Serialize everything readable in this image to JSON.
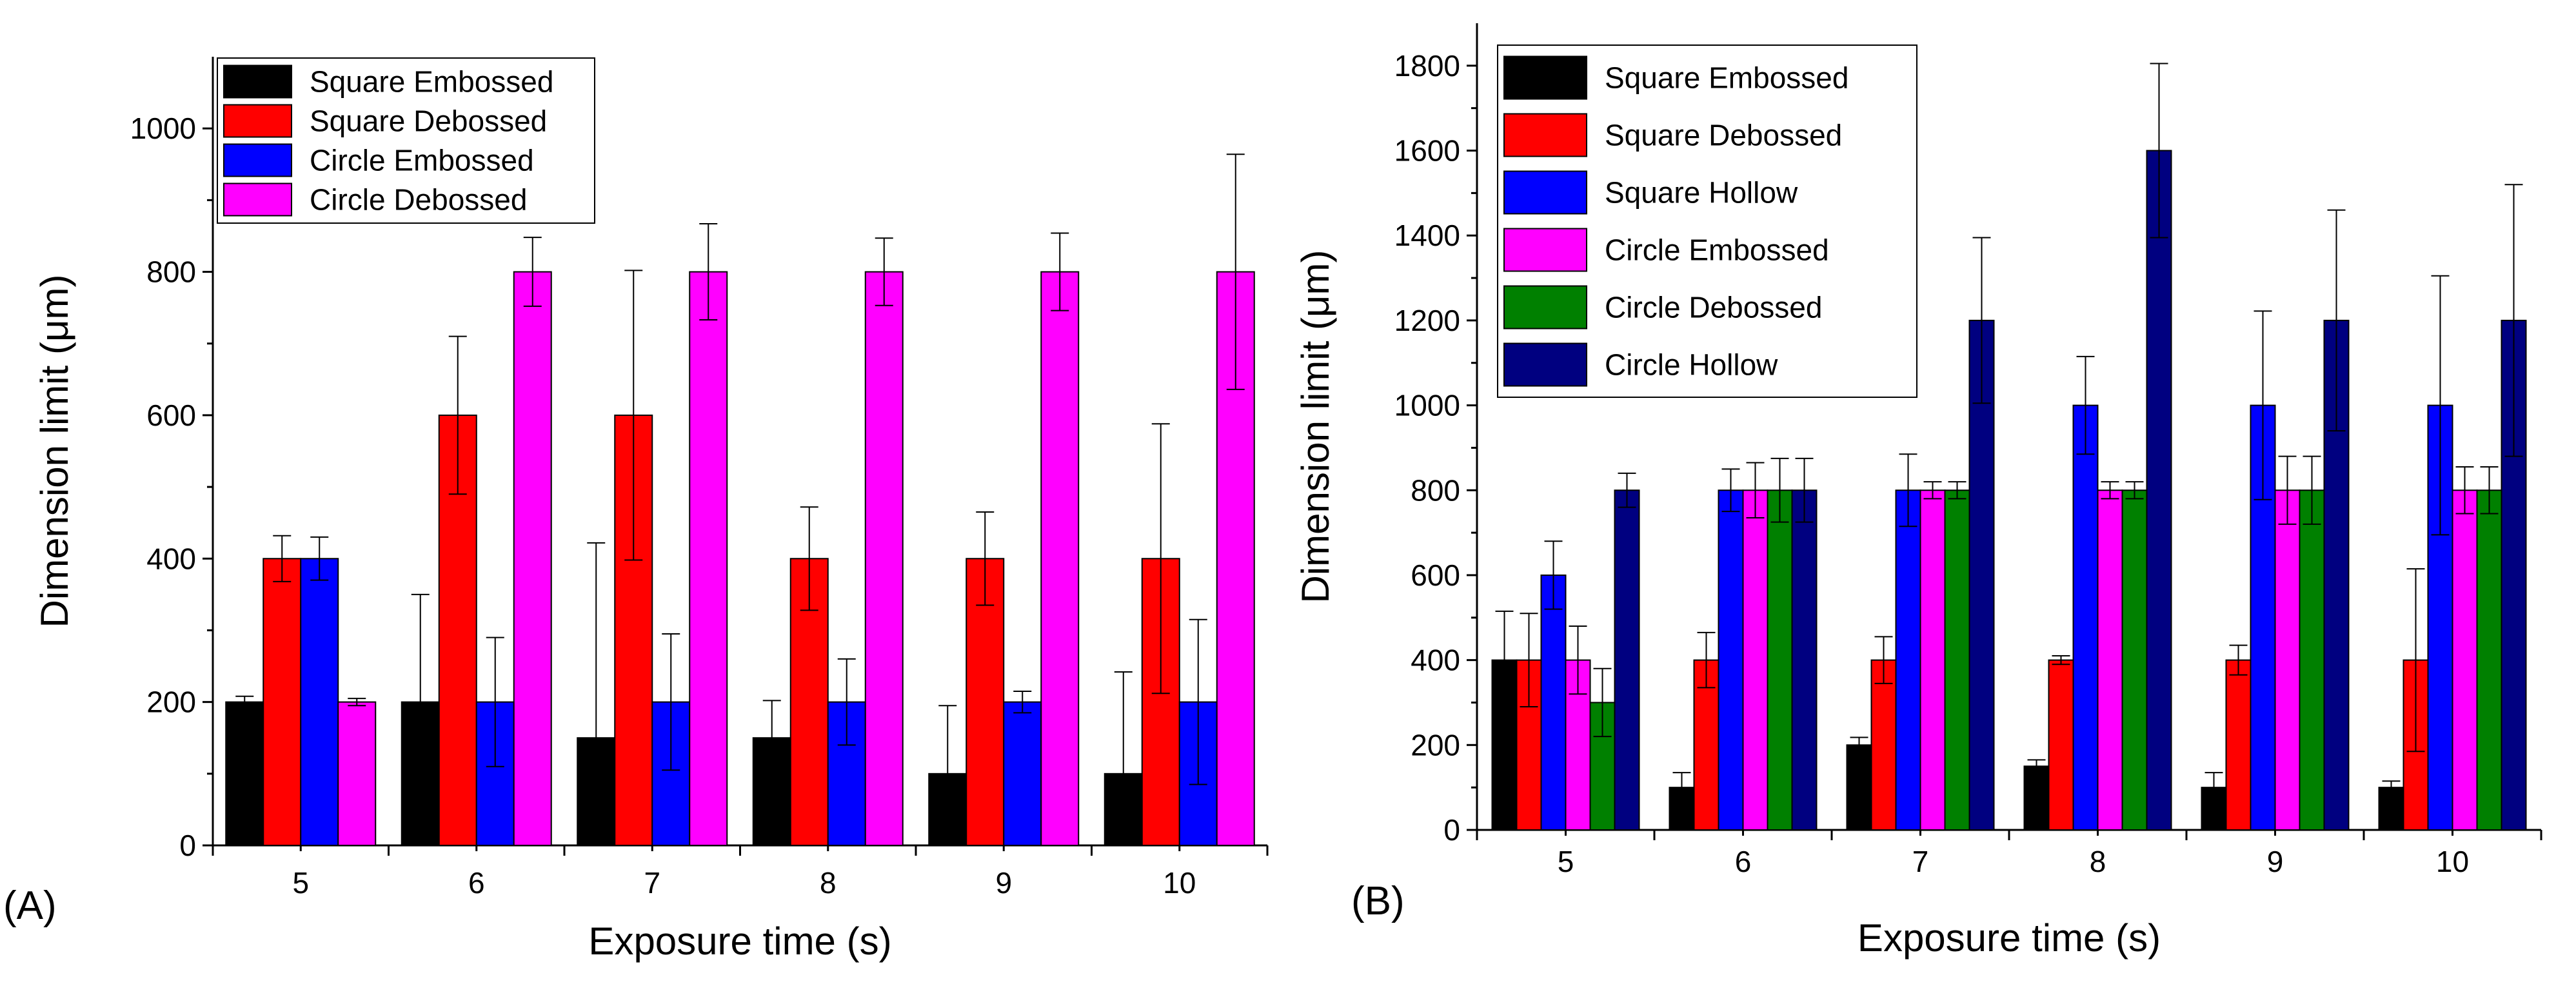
{
  "chart_data": [
    {
      "panel_label": "(A)",
      "type": "bar",
      "xlabel": "Exposure time (s)",
      "ylabel": "Dimension limit (μm)",
      "ylim": [
        0,
        1100
      ],
      "yticks": [
        0,
        200,
        400,
        600,
        800,
        1000
      ],
      "categories": [
        "5",
        "6",
        "7",
        "8",
        "9",
        "10"
      ],
      "legend_position": "top-left",
      "series": [
        {
          "name": "Square Embossed",
          "color": "#000000",
          "values": [
            200,
            200,
            150,
            150,
            100,
            100
          ],
          "errors": [
            8,
            150,
            272,
            52,
            95,
            142
          ]
        },
        {
          "name": "Square Debossed",
          "color": "#ff0000",
          "values": [
            400,
            600,
            600,
            400,
            400,
            400
          ],
          "errors": [
            32,
            110,
            202,
            72,
            65,
            188
          ]
        },
        {
          "name": "Circle Embossed",
          "color": "#0000ff",
          "values": [
            400,
            200,
            200,
            200,
            200,
            200
          ],
          "errors": [
            30,
            90,
            95,
            60,
            15,
            115
          ]
        },
        {
          "name": "Circle Debossed",
          "color": "#ff00ff",
          "values": [
            200,
            800,
            800,
            800,
            800,
            800
          ],
          "errors": [
            5,
            48,
            67,
            47,
            54,
            164
          ]
        }
      ]
    },
    {
      "panel_label": "(B)",
      "type": "bar",
      "xlabel": "Exposure time (s)",
      "ylabel": "Dimension limit (μm)",
      "ylim": [
        0,
        1900
      ],
      "yticks": [
        0,
        200,
        400,
        600,
        800,
        1000,
        1200,
        1400,
        1600,
        1800
      ],
      "categories": [
        "5",
        "6",
        "7",
        "8",
        "9",
        "10"
      ],
      "legend_position": "top-left",
      "series": [
        {
          "name": "Square Embossed",
          "color": "#000000",
          "values": [
            400,
            100,
            200,
            150,
            100,
            100
          ],
          "errors": [
            115,
            35,
            18,
            15,
            35,
            15
          ]
        },
        {
          "name": "Square Debossed",
          "color": "#ff0000",
          "values": [
            400,
            400,
            400,
            400,
            400,
            400
          ],
          "errors": [
            110,
            65,
            55,
            10,
            35,
            215
          ]
        },
        {
          "name": "Square Hollow",
          "color": "#0000ff",
          "values": [
            600,
            800,
            800,
            1000,
            1000,
            1000
          ],
          "errors": [
            80,
            50,
            85,
            115,
            222,
            305
          ]
        },
        {
          "name": "Circle Embossed",
          "color": "#ff00ff",
          "values": [
            400,
            800,
            800,
            800,
            800,
            800
          ],
          "errors": [
            80,
            65,
            20,
            20,
            80,
            55
          ]
        },
        {
          "name": "Circle Debossed",
          "color": "#008000",
          "values": [
            300,
            800,
            800,
            800,
            800,
            800
          ],
          "errors": [
            80,
            75,
            20,
            20,
            80,
            55
          ]
        },
        {
          "name": "Circle Hollow",
          "color": "#000080",
          "values": [
            800,
            800,
            1200,
            1600,
            1200,
            1200
          ],
          "errors": [
            40,
            75,
            195,
            205,
            260,
            320
          ]
        }
      ]
    }
  ]
}
